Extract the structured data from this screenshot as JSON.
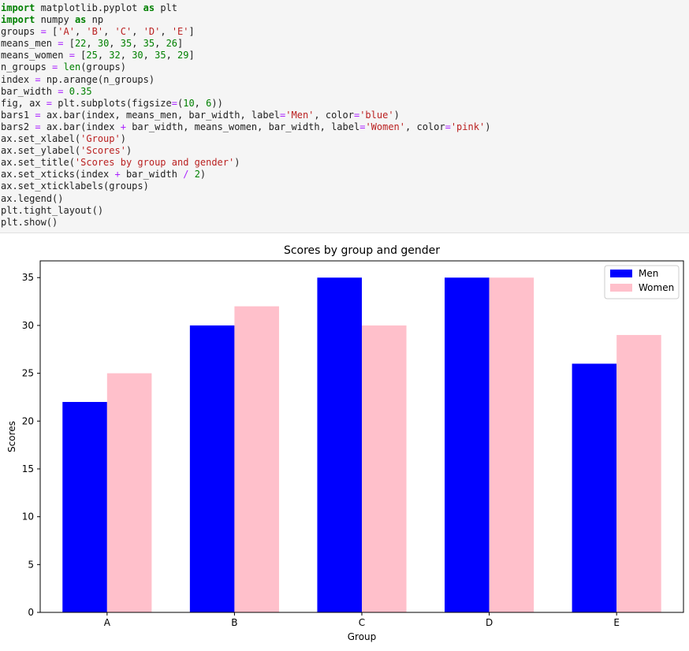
{
  "code_cell": {
    "lines": [
      [
        {
          "t": "import",
          "c": "kw"
        },
        {
          "t": " matplotlib.pyplot ",
          "c": "plain"
        },
        {
          "t": "as",
          "c": "kw"
        },
        {
          "t": " plt",
          "c": "plain"
        }
      ],
      [
        {
          "t": "import",
          "c": "kw"
        },
        {
          "t": " numpy ",
          "c": "plain"
        },
        {
          "t": "as",
          "c": "kw"
        },
        {
          "t": " np",
          "c": "plain"
        }
      ],
      [
        {
          "t": "groups ",
          "c": "plain"
        },
        {
          "t": "=",
          "c": "op"
        },
        {
          "t": " [",
          "c": "plain"
        },
        {
          "t": "'A'",
          "c": "str"
        },
        {
          "t": ", ",
          "c": "plain"
        },
        {
          "t": "'B'",
          "c": "str"
        },
        {
          "t": ", ",
          "c": "plain"
        },
        {
          "t": "'C'",
          "c": "str"
        },
        {
          "t": ", ",
          "c": "plain"
        },
        {
          "t": "'D'",
          "c": "str"
        },
        {
          "t": ", ",
          "c": "plain"
        },
        {
          "t": "'E'",
          "c": "str"
        },
        {
          "t": "]",
          "c": "plain"
        }
      ],
      [
        {
          "t": "means_men ",
          "c": "plain"
        },
        {
          "t": "=",
          "c": "op"
        },
        {
          "t": " [",
          "c": "plain"
        },
        {
          "t": "22",
          "c": "num"
        },
        {
          "t": ", ",
          "c": "plain"
        },
        {
          "t": "30",
          "c": "num"
        },
        {
          "t": ", ",
          "c": "plain"
        },
        {
          "t": "35",
          "c": "num"
        },
        {
          "t": ", ",
          "c": "plain"
        },
        {
          "t": "35",
          "c": "num"
        },
        {
          "t": ", ",
          "c": "plain"
        },
        {
          "t": "26",
          "c": "num"
        },
        {
          "t": "]",
          "c": "plain"
        }
      ],
      [
        {
          "t": "means_women ",
          "c": "plain"
        },
        {
          "t": "=",
          "c": "op"
        },
        {
          "t": " [",
          "c": "plain"
        },
        {
          "t": "25",
          "c": "num"
        },
        {
          "t": ", ",
          "c": "plain"
        },
        {
          "t": "32",
          "c": "num"
        },
        {
          "t": ", ",
          "c": "plain"
        },
        {
          "t": "30",
          "c": "num"
        },
        {
          "t": ", ",
          "c": "plain"
        },
        {
          "t": "35",
          "c": "num"
        },
        {
          "t": ", ",
          "c": "plain"
        },
        {
          "t": "29",
          "c": "num"
        },
        {
          "t": "]",
          "c": "plain"
        }
      ],
      [
        {
          "t": "n_groups ",
          "c": "plain"
        },
        {
          "t": "=",
          "c": "op"
        },
        {
          "t": " ",
          "c": "plain"
        },
        {
          "t": "len",
          "c": "num"
        },
        {
          "t": "(groups)",
          "c": "plain"
        }
      ],
      [
        {
          "t": "index ",
          "c": "plain"
        },
        {
          "t": "=",
          "c": "op"
        },
        {
          "t": " np.arange(n_groups)",
          "c": "plain"
        }
      ],
      [
        {
          "t": "bar_width ",
          "c": "plain"
        },
        {
          "t": "=",
          "c": "op"
        },
        {
          "t": " ",
          "c": "plain"
        },
        {
          "t": "0.35",
          "c": "num"
        }
      ],
      [
        {
          "t": "fig, ax ",
          "c": "plain"
        },
        {
          "t": "=",
          "c": "op"
        },
        {
          "t": " plt.subplots(figsize",
          "c": "plain"
        },
        {
          "t": "=",
          "c": "op"
        },
        {
          "t": "(",
          "c": "plain"
        },
        {
          "t": "10",
          "c": "num"
        },
        {
          "t": ", ",
          "c": "plain"
        },
        {
          "t": "6",
          "c": "num"
        },
        {
          "t": "))",
          "c": "plain"
        }
      ],
      [
        {
          "t": "bars1 ",
          "c": "plain"
        },
        {
          "t": "=",
          "c": "op"
        },
        {
          "t": " ax.bar(index, means_men, bar_width, label",
          "c": "plain"
        },
        {
          "t": "=",
          "c": "op"
        },
        {
          "t": "'Men'",
          "c": "str"
        },
        {
          "t": ", color",
          "c": "plain"
        },
        {
          "t": "=",
          "c": "op"
        },
        {
          "t": "'blue'",
          "c": "str"
        },
        {
          "t": ")",
          "c": "plain"
        }
      ],
      [
        {
          "t": "bars2 ",
          "c": "plain"
        },
        {
          "t": "=",
          "c": "op"
        },
        {
          "t": " ax.bar(index ",
          "c": "plain"
        },
        {
          "t": "+",
          "c": "op"
        },
        {
          "t": " bar_width, means_women, bar_width, label",
          "c": "plain"
        },
        {
          "t": "=",
          "c": "op"
        },
        {
          "t": "'Women'",
          "c": "str"
        },
        {
          "t": ", color",
          "c": "plain"
        },
        {
          "t": "=",
          "c": "op"
        },
        {
          "t": "'pink'",
          "c": "str"
        },
        {
          "t": ")",
          "c": "plain"
        }
      ],
      [
        {
          "t": "ax.set_xlabel(",
          "c": "plain"
        },
        {
          "t": "'Group'",
          "c": "str"
        },
        {
          "t": ")",
          "c": "plain"
        }
      ],
      [
        {
          "t": "ax.set_ylabel(",
          "c": "plain"
        },
        {
          "t": "'Scores'",
          "c": "str"
        },
        {
          "t": ")",
          "c": "plain"
        }
      ],
      [
        {
          "t": "ax.set_title(",
          "c": "plain"
        },
        {
          "t": "'Scores by group and gender'",
          "c": "str"
        },
        {
          "t": ")",
          "c": "plain"
        }
      ],
      [
        {
          "t": "ax.set_xticks(index ",
          "c": "plain"
        },
        {
          "t": "+",
          "c": "op"
        },
        {
          "t": " bar_width ",
          "c": "plain"
        },
        {
          "t": "/",
          "c": "op"
        },
        {
          "t": " ",
          "c": "plain"
        },
        {
          "t": "2",
          "c": "num"
        },
        {
          "t": ")",
          "c": "plain"
        }
      ],
      [
        {
          "t": "ax.set_xticklabels(groups)",
          "c": "plain"
        }
      ],
      [
        {
          "t": "ax.legend()",
          "c": "plain"
        }
      ],
      [
        {
          "t": "plt.tight_layout()",
          "c": "plain"
        }
      ],
      [
        {
          "t": "plt.show()",
          "c": "plain"
        }
      ]
    ]
  },
  "chart_data": {
    "type": "bar",
    "title": "Scores by group and gender",
    "xlabel": "Group",
    "ylabel": "Scores",
    "categories": [
      "A",
      "B",
      "C",
      "D",
      "E"
    ],
    "ylim": [
      0,
      36.75
    ],
    "yticks": [
      "0",
      "5",
      "10",
      "15",
      "20",
      "25",
      "30",
      "35"
    ],
    "ytick_values": [
      0,
      5,
      10,
      15,
      20,
      25,
      30,
      35
    ],
    "legend_position": "top-right",
    "grid": false,
    "series": [
      {
        "name": "Men",
        "color": "#0000ff",
        "values": [
          22,
          30,
          35,
          35,
          26
        ]
      },
      {
        "name": "Women",
        "color": "#ffc0cb",
        "values": [
          25,
          32,
          30,
          35,
          29
        ]
      }
    ]
  }
}
